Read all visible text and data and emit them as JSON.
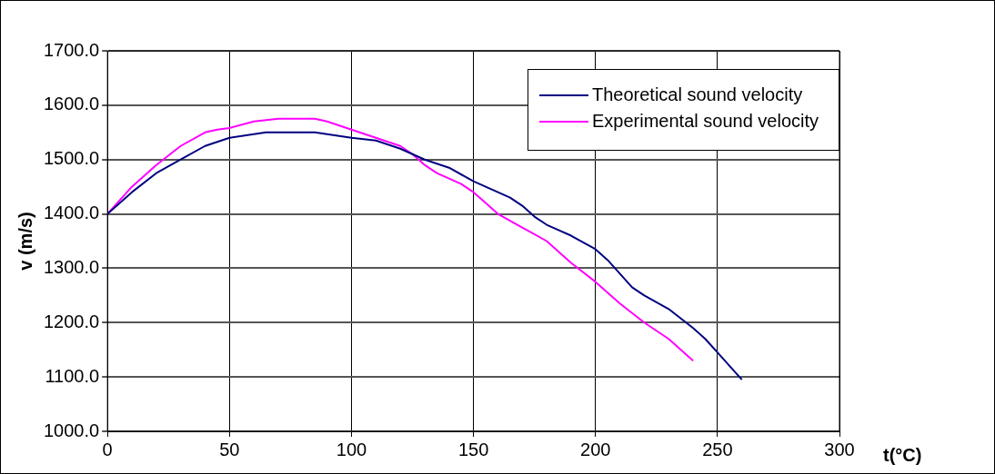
{
  "chart_data": {
    "type": "line",
    "xlabel": "t(°C)",
    "ylabel": "v (m/s)",
    "xlim": [
      0,
      300
    ],
    "xticks": [
      0,
      50,
      100,
      150,
      200,
      250,
      300
    ],
    "ylim": [
      1000,
      1700
    ],
    "yticks": [
      {
        "value": 1000,
        "label": "1000.0"
      },
      {
        "value": 1100,
        "label": "1100.0"
      },
      {
        "value": 1200,
        "label": "1200.0"
      },
      {
        "value": 1300,
        "label": "1300.0"
      },
      {
        "value": 1400,
        "label": "1400.0"
      },
      {
        "value": 1500,
        "label": "1500.0"
      },
      {
        "value": 1600,
        "label": "1600.0"
      },
      {
        "value": 1700,
        "label": "1700.0"
      }
    ],
    "grid": true,
    "legend": "top right",
    "marker": "none",
    "line_style": "solid",
    "series": [
      {
        "name": "Theoretical sound velocity",
        "color": "#000080",
        "x": [
          0,
          10,
          20,
          30,
          40,
          50,
          65,
          85,
          100,
          110,
          120,
          130,
          140,
          150,
          160,
          165,
          170,
          175,
          180,
          190,
          200,
          205,
          210,
          215,
          220,
          230,
          240,
          245,
          250,
          260
        ],
        "values": [
          1400,
          1440,
          1475,
          1500,
          1525,
          1540,
          1550,
          1550,
          1540,
          1535,
          1520,
          1500,
          1485,
          1460,
          1440,
          1430,
          1415,
          1395,
          1380,
          1360,
          1335,
          1315,
          1290,
          1265,
          1250,
          1225,
          1190,
          1170,
          1145,
          1095
        ]
      },
      {
        "name": "Experimental sound velocity",
        "color": "#ff00ff",
        "x": [
          0,
          10,
          15,
          20,
          30,
          40,
          45,
          50,
          60,
          70,
          85,
          90,
          100,
          110,
          120,
          125,
          130,
          135,
          145,
          150,
          155,
          160,
          170,
          180,
          185,
          190,
          200,
          210,
          220,
          230,
          240
        ],
        "values": [
          1400,
          1450,
          1470,
          1490,
          1525,
          1550,
          1555,
          1558,
          1570,
          1575,
          1575,
          1570,
          1555,
          1540,
          1525,
          1510,
          1490,
          1475,
          1455,
          1440,
          1420,
          1400,
          1375,
          1350,
          1330,
          1310,
          1275,
          1235,
          1200,
          1170,
          1130
        ]
      }
    ]
  }
}
